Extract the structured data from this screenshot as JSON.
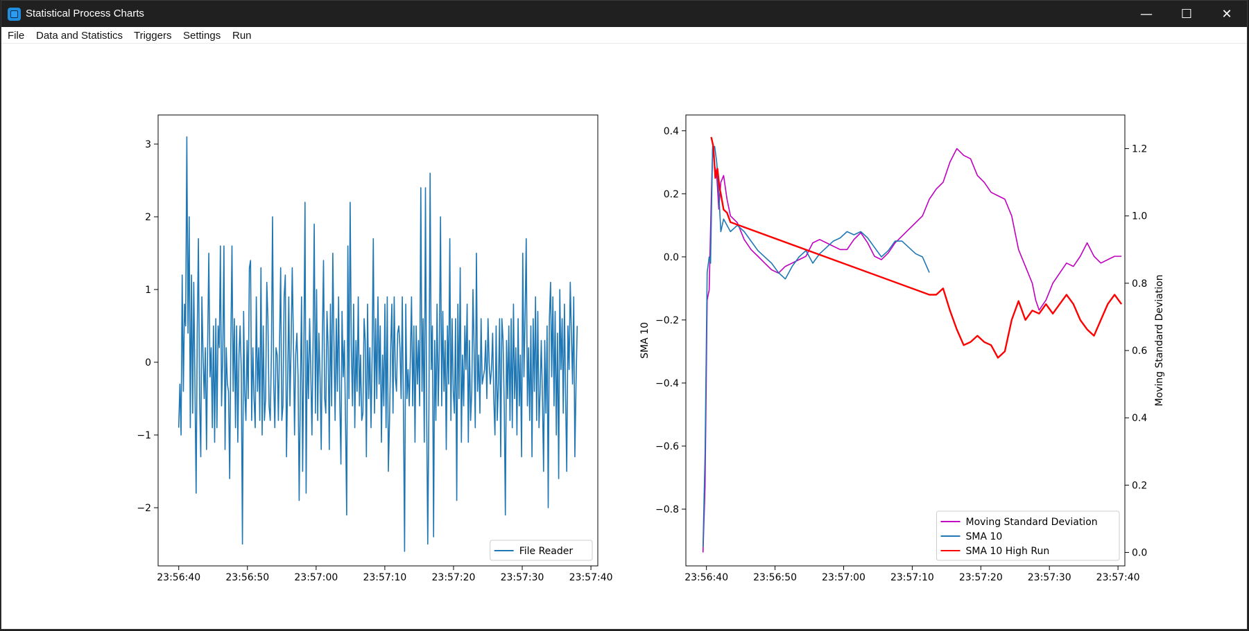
{
  "window": {
    "title": "Statistical Process Charts",
    "controls": {
      "minimize": "—",
      "maximize": "☐",
      "close": "✕"
    }
  },
  "menu": [
    "File",
    "Data and Statistics",
    "Triggers",
    "Settings",
    "Run"
  ],
  "colors": {
    "blue": "#1f77b4",
    "magenta": "#bf00bf",
    "red": "#ff0000"
  },
  "chart_data": [
    {
      "type": "line",
      "title": "",
      "xlabel": "",
      "ylabel": "",
      "xlim": [
        "23:56:37",
        "23:57:41"
      ],
      "ylim": [
        -2.8,
        3.4
      ],
      "xticks": [
        "23:56:40",
        "23:56:50",
        "23:57:00",
        "23:57:10",
        "23:57:20",
        "23:57:30",
        "23:57:40"
      ],
      "yticks": [
        "−2",
        "−1",
        "0",
        "1",
        "2",
        "3"
      ],
      "legend": {
        "position": "lower-right",
        "entries": [
          "File Reader"
        ]
      },
      "grid": false,
      "series": [
        {
          "name": "File Reader",
          "color": "#1f77b4",
          "x_start": "23:56:40",
          "x_end": "23:57:38",
          "values": [
            -0.9,
            -0.3,
            -1.0,
            1.2,
            -0.4,
            0.8,
            0.5,
            3.1,
            0.4,
            2.0,
            -0.9,
            1.2,
            -0.7,
            1.1,
            -0.3,
            -1.8,
            0.4,
            1.7,
            -0.5,
            -1.3,
            0.9,
            0.1,
            -0.5,
            0.2,
            -1.2,
            0.3,
            1.5,
            -0.2,
            0.2,
            -0.9,
            0.5,
            -1.1,
            0.6,
            -0.9,
            0.5,
            0.2,
            1.6,
            -0.6,
            0.1,
            1.6,
            -1.2,
            0.2,
            -0.3,
            -0.4,
            -1.6,
            0.3,
            1.6,
            -0.4,
            0.6,
            -0.9,
            0.5,
            -1.1,
            0.1,
            0.5,
            -0.1,
            -2.5,
            0.7,
            -0.4,
            -0.8,
            0.3,
            -0.5,
            1.3,
            1.4,
            -0.8,
            0.2,
            -0.5,
            -0.9,
            0.9,
            -0.4,
            0.2,
            -0.8,
            1.3,
            -1.0,
            0.5,
            -0.8,
            -0.5,
            1.1,
            0.6,
            -0.6,
            -0.8,
            0.1,
            2.0,
            -0.3,
            -0.9,
            0.2,
            0.1,
            -0.8,
            0.2,
            1.3,
            -0.8,
            -0.6,
            0.9,
            1.2,
            -1.3,
            -0.3,
            0.9,
            -0.6,
            0.2,
            1.3,
            0.3,
            -1.0,
            0.1,
            0.4,
            -0.2,
            -1.9,
            -0.4,
            0.9,
            -1.5,
            0.1,
            2.2,
            -1.8,
            0.3,
            -0.5,
            0.6,
            -0.1,
            -1.0,
            0.3,
            1.9,
            -0.7,
            1.0,
            -0.8,
            0.4,
            -0.2,
            -1.2,
            0.3,
            1.4,
            -0.5,
            -0.7,
            0.7,
            0.2,
            -1.2,
            0.8,
            -0.6,
            1.5,
            0.3,
            -0.8,
            0.6,
            -0.4,
            0.9,
            -0.5,
            -1.4,
            0.7,
            -0.2,
            0.3,
            -0.8,
            -2.1,
            1.6,
            -0.5,
            2.2,
            0.2,
            -0.6,
            0.8,
            -0.9,
            0.3,
            -0.4,
            0.9,
            -0.6,
            0.1,
            -0.8,
            -0.7,
            0.6,
            0.3,
            -1.3,
            0.8,
            -0.5,
            0.2,
            -0.9,
            0.1,
            1.7,
            -0.7,
            0.6,
            -0.5,
            0.9,
            -0.3,
            0.5,
            -1.1,
            0.1,
            -0.6,
            0.8,
            -0.9,
            0.9,
            -1.5,
            -0.8,
            0.2,
            0.8,
            -0.7,
            0.9,
            -0.2,
            -0.4,
            0.4,
            0.5,
            0.2,
            -0.5,
            0.9,
            -0.6,
            -2.6,
            0.8,
            -0.5,
            -0.1,
            -0.6,
            0.1,
            0.9,
            -0.6,
            0.5,
            -1.1,
            0.5,
            -0.3,
            0.3,
            -0.6,
            2.4,
            -0.4,
            0.6,
            -1.1,
            2.4,
            -0.7,
            -2.5,
            -0.6,
            2.6,
            -0.1,
            0.5,
            -2.4,
            0.3,
            -0.8,
            0.8,
            -0.6,
            0.2,
            2.0,
            -0.6,
            0.7,
            -0.4,
            0.3,
            -1.2,
            0.5,
            -0.3,
            1.7,
            -0.8,
            0.6,
            -0.4,
            -0.7,
            0.6,
            -1.9,
            0.8,
            -0.5,
            1.3,
            -1.1,
            0.1,
            -0.6,
            0.5,
            -0.1,
            0.8,
            -1.1,
            0.3,
            -0.8,
            -0.4,
            1.0,
            0.2,
            -0.9,
            1.5,
            -0.4,
            0.1,
            -0.7,
            0.6,
            -0.3,
            -0.2,
            -0.1,
            0.3,
            -0.5,
            0.6,
            0.0,
            -0.3,
            -0.1,
            0.4,
            -0.5,
            -1.0,
            0.5,
            -0.8,
            -0.3,
            0.6,
            -1.3,
            0.6,
            0.3,
            -0.6,
            -2.1,
            0.3,
            -0.5,
            0.5,
            -0.8,
            0.6,
            -0.9,
            0.8,
            -0.5,
            0.2,
            -1.0,
            0.6,
            -0.6,
            0.1,
            -1.3,
            1.5,
            -0.2,
            0.6,
            1.7,
            -0.6,
            0.2,
            -0.8,
            0.5,
            -1.3,
            0.6,
            -0.4,
            0.9,
            -0.8,
            0.7,
            -0.9,
            -0.4,
            0.3,
            -0.5,
            -1.5,
            0.3,
            -0.7,
            0.5,
            -2.0,
            0.6,
            1.1,
            -0.2,
            0.9,
            -0.6,
            0.7,
            -1.0,
            0.4,
            -1.6,
            1.0,
            -0.1,
            0.6,
            -0.7,
            0.8,
            -0.5,
            -1.5,
            0.5,
            -0.1,
            1.1,
            0.4,
            -0.3,
            0.9,
            -1.3,
            -0.3,
            0.5
          ],
          "yvals_note": ""
        }
      ]
    },
    {
      "type": "line",
      "title": "",
      "xlabel": "",
      "ylabel": "SMA 10",
      "y2label": "Moving Standard Deviation",
      "xlim": [
        "23:56:37",
        "23:57:41"
      ],
      "ylim": [
        -0.98,
        0.45
      ],
      "y2lim": [
        -0.04,
        1.3
      ],
      "xticks": [
        "23:56:40",
        "23:56:50",
        "23:57:00",
        "23:57:10",
        "23:57:20",
        "23:57:30",
        "23:57:40"
      ],
      "yticks": [
        "−0.8",
        "−0.6",
        "−0.4",
        "−0.2",
        "0.0",
        "0.2",
        "0.4"
      ],
      "y2ticks": [
        "0.0",
        "0.2",
        "0.4",
        "0.6",
        "0.8",
        "1.0",
        "1.2"
      ],
      "legend": {
        "position": "lower-right",
        "entries": [
          "Moving Standard Deviation",
          "SMA 10",
          "SMA 10 High Run"
        ]
      },
      "grid": false,
      "series": [
        {
          "name": "Moving Standard Deviation",
          "axis": "right",
          "color": "#bf00bf",
          "points": [
            [
              0,
              0.0
            ],
            [
              0.3,
              0.2
            ],
            [
              0.6,
              0.75
            ],
            [
              0.9,
              0.78
            ],
            [
              1.2,
              1.05
            ],
            [
              1.4,
              1.2
            ],
            [
              1.7,
              1.15
            ],
            [
              2.0,
              1.12
            ],
            [
              2.3,
              1.02
            ],
            [
              2.6,
              1.1
            ],
            [
              3.0,
              1.12
            ],
            [
              3.5,
              1.05
            ],
            [
              4.0,
              1.0
            ],
            [
              5.0,
              0.98
            ],
            [
              6.0,
              0.93
            ],
            [
              7.0,
              0.9
            ],
            [
              8.0,
              0.88
            ],
            [
              9.0,
              0.86
            ],
            [
              10.0,
              0.84
            ],
            [
              11.0,
              0.83
            ],
            [
              12.0,
              0.85
            ],
            [
              13.0,
              0.86
            ],
            [
              14.0,
              0.87
            ],
            [
              15.0,
              0.88
            ],
            [
              16.0,
              0.92
            ],
            [
              17.0,
              0.93
            ],
            [
              18.0,
              0.92
            ],
            [
              19.0,
              0.91
            ],
            [
              20.0,
              0.9
            ],
            [
              21.0,
              0.9
            ],
            [
              22.0,
              0.93
            ],
            [
              23.0,
              0.95
            ],
            [
              24.0,
              0.92
            ],
            [
              25.0,
              0.88
            ],
            [
              26.0,
              0.87
            ],
            [
              27.0,
              0.89
            ],
            [
              28.0,
              0.92
            ],
            [
              29.0,
              0.94
            ],
            [
              30.0,
              0.96
            ],
            [
              31.0,
              0.98
            ],
            [
              32.0,
              1.0
            ],
            [
              33.0,
              1.05
            ],
            [
              34.0,
              1.08
            ],
            [
              35.0,
              1.1
            ],
            [
              36.0,
              1.16
            ],
            [
              37.0,
              1.2
            ],
            [
              38.0,
              1.18
            ],
            [
              39.0,
              1.17
            ],
            [
              40.0,
              1.12
            ],
            [
              41.0,
              1.1
            ],
            [
              42.0,
              1.07
            ],
            [
              43.0,
              1.06
            ],
            [
              44.0,
              1.05
            ],
            [
              45.0,
              1.0
            ],
            [
              46.0,
              0.9
            ],
            [
              47.0,
              0.85
            ],
            [
              48.0,
              0.8
            ],
            [
              48.5,
              0.75
            ],
            [
              49.0,
              0.72
            ],
            [
              50.0,
              0.75
            ],
            [
              51.0,
              0.8
            ],
            [
              52.0,
              0.83
            ],
            [
              53.0,
              0.86
            ],
            [
              54.0,
              0.85
            ],
            [
              55.0,
              0.88
            ],
            [
              56.0,
              0.92
            ],
            [
              57.0,
              0.88
            ],
            [
              58.0,
              0.86
            ],
            [
              59.0,
              0.87
            ],
            [
              60.0,
              0.88
            ],
            [
              61.0,
              0.88
            ]
          ]
        },
        {
          "name": "SMA 10",
          "axis": "left",
          "color": "#1f77b4",
          "points": [
            [
              0,
              -0.92
            ],
            [
              0.3,
              -0.62
            ],
            [
              0.6,
              -0.05
            ],
            [
              0.9,
              0.0
            ],
            [
              1.1,
              -0.02
            ],
            [
              1.4,
              0.35
            ],
            [
              1.7,
              0.35
            ],
            [
              2.0,
              0.3
            ],
            [
              2.3,
              0.2
            ],
            [
              2.6,
              0.08
            ],
            [
              3.0,
              0.12
            ],
            [
              3.5,
              0.1
            ],
            [
              4.0,
              0.08
            ],
            [
              5.0,
              0.1
            ],
            [
              6.0,
              0.08
            ],
            [
              7.0,
              0.05
            ],
            [
              8.0,
              0.02
            ],
            [
              9.0,
              0.0
            ],
            [
              10.0,
              -0.02
            ],
            [
              11.0,
              -0.05
            ],
            [
              12.0,
              -0.07
            ],
            [
              13.0,
              -0.03
            ],
            [
              14.0,
              0.0
            ],
            [
              15.0,
              0.02
            ],
            [
              16.0,
              -0.02
            ],
            [
              17.0,
              0.01
            ],
            [
              18.0,
              0.03
            ],
            [
              19.0,
              0.05
            ],
            [
              20.0,
              0.06
            ],
            [
              21.0,
              0.08
            ],
            [
              22.0,
              0.07
            ],
            [
              23.0,
              0.08
            ],
            [
              24.0,
              0.06
            ],
            [
              25.0,
              0.03
            ],
            [
              26.0,
              0.0
            ],
            [
              27.0,
              0.02
            ],
            [
              28.0,
              0.05
            ],
            [
              29.0,
              0.05
            ],
            [
              30.0,
              0.03
            ],
            [
              31.0,
              0.01
            ],
            [
              32.0,
              0.0
            ],
            [
              33.0,
              -0.05
            ]
          ]
        },
        {
          "name": "SMA 10 High Run",
          "axis": "left",
          "color": "#ff0000",
          "points": [
            [
              1.2,
              0.38
            ],
            [
              1.5,
              0.35
            ],
            [
              1.8,
              0.25
            ],
            [
              2.1,
              0.28
            ],
            [
              2.4,
              0.22
            ],
            [
              2.6,
              0.2
            ],
            [
              3.0,
              0.15
            ],
            [
              3.5,
              0.14
            ],
            [
              4.0,
              0.11
            ],
            [
              33.0,
              -0.12
            ],
            [
              34.0,
              -0.12
            ],
            [
              35.0,
              -0.1
            ],
            [
              36.0,
              -0.17
            ],
            [
              37.0,
              -0.23
            ],
            [
              38.0,
              -0.28
            ],
            [
              39.0,
              -0.27
            ],
            [
              40.0,
              -0.25
            ],
            [
              41.0,
              -0.27
            ],
            [
              42.0,
              -0.28
            ],
            [
              43.0,
              -0.32
            ],
            [
              44.0,
              -0.3
            ],
            [
              45.0,
              -0.2
            ],
            [
              46.0,
              -0.14
            ],
            [
              47.0,
              -0.2
            ],
            [
              48.0,
              -0.17
            ],
            [
              49.0,
              -0.18
            ],
            [
              50.0,
              -0.15
            ],
            [
              51.0,
              -0.18
            ],
            [
              52.0,
              -0.15
            ],
            [
              53.0,
              -0.12
            ],
            [
              54.0,
              -0.15
            ],
            [
              55.0,
              -0.2
            ],
            [
              56.0,
              -0.23
            ],
            [
              57.0,
              -0.25
            ],
            [
              58.0,
              -0.2
            ],
            [
              59.0,
              -0.15
            ],
            [
              60.0,
              -0.12
            ],
            [
              61.0,
              -0.15
            ]
          ]
        }
      ]
    }
  ]
}
